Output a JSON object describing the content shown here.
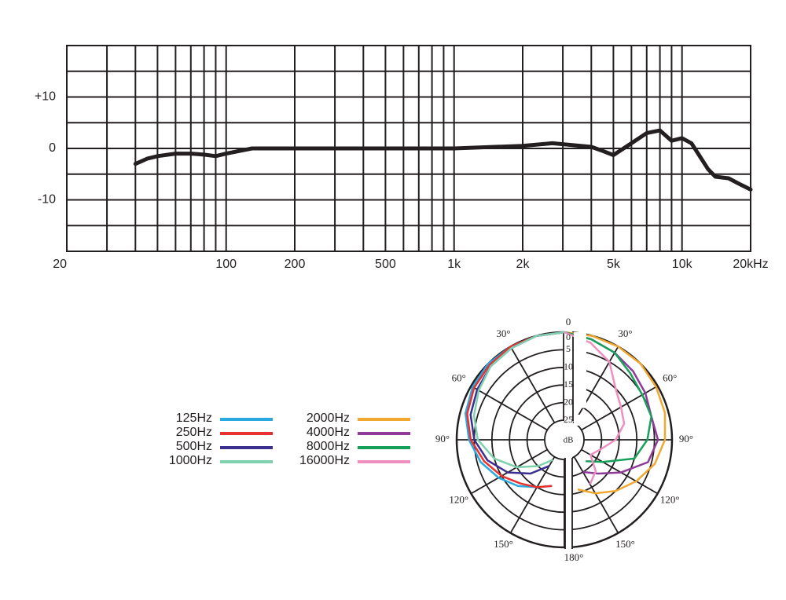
{
  "chart_data": [
    {
      "type": "line",
      "xscale": "log",
      "color": "#231f20",
      "grid": true,
      "x": [
        40,
        45,
        50,
        60,
        70,
        80,
        90,
        100,
        130,
        200,
        500,
        1000,
        2000,
        2700,
        4000,
        4500,
        5000,
        6000,
        7000,
        8000,
        9000,
        10000,
        11000,
        13000,
        14000,
        16000,
        18000,
        20000
      ],
      "values": [
        -3,
        -2,
        -1.5,
        -1,
        -1,
        -1.2,
        -1.5,
        -1,
        0,
        0,
        0,
        0,
        0.5,
        1,
        0.3,
        -0.5,
        -1.3,
        1,
        3,
        3.5,
        1.5,
        2,
        1,
        -4,
        -5.5,
        -5.8,
        -7,
        -8
      ],
      "xlim": [
        20,
        20000
      ],
      "xticks": [
        20,
        100,
        200,
        500,
        {
          "value": 1000,
          "label": "1k"
        },
        {
          "value": 2000,
          "label": "2k"
        },
        {
          "value": 5000,
          "label": "5k"
        },
        {
          "value": 10000,
          "label": "10k"
        },
        {
          "value": 20000,
          "label": "20kHz"
        }
      ],
      "xminor": [
        30,
        40,
        50,
        60,
        70,
        80,
        90,
        300,
        400,
        600,
        700,
        800,
        900,
        3000,
        4000,
        6000,
        7000,
        8000,
        9000
      ],
      "ylim": [
        -20,
        20
      ],
      "yticks": [
        {
          "value": 10,
          "label": "+10"
        },
        0,
        -10
      ],
      "yminor": [
        20,
        15,
        5,
        -5,
        -15,
        -20
      ]
    },
    {
      "type": "polar",
      "legend": "left",
      "r_unit": "dB",
      "rlim": [
        0,
        25
      ],
      "rticks": [
        0,
        5,
        10,
        15,
        20,
        25
      ],
      "angle_ticks": [
        {
          "value": 0,
          "label": "0"
        },
        {
          "value": 30,
          "label": "30°"
        },
        {
          "value": 60,
          "label": "60°"
        },
        {
          "value": 90,
          "label": "90°"
        },
        {
          "value": 120,
          "label": "120°"
        },
        {
          "value": 150,
          "label": "150°"
        },
        {
          "value": 180,
          "label": "180°"
        }
      ],
      "angles": [
        0,
        15,
        30,
        45,
        60,
        75,
        90,
        105,
        120,
        135,
        150,
        165
      ],
      "series": [
        {
          "name": "125Hz",
          "color": "#29a9e0",
          "side": "left",
          "values": [
            0,
            0,
            0,
            0,
            0.5,
            1.5,
            3.5,
            6,
            9,
            12,
            15,
            17
          ]
        },
        {
          "name": "250Hz",
          "color": "#e8312f",
          "side": "left",
          "values": [
            0,
            0,
            0,
            0.5,
            1,
            2,
            4,
            7,
            10,
            13,
            15,
            17
          ]
        },
        {
          "name": "500Hz",
          "color": "#3b2f8f",
          "side": "left",
          "values": [
            0,
            0,
            0.5,
            1,
            2,
            3,
            5,
            8,
            12,
            17,
            22,
            null
          ]
        },
        {
          "name": "1000Hz",
          "color": "#7fd1b0",
          "side": "left",
          "values": [
            0,
            0,
            0.5,
            1,
            2.5,
            4,
            6,
            10,
            15,
            20,
            24,
            null
          ]
        },
        {
          "name": "2000Hz",
          "color": "#f0a830",
          "side": "right",
          "values": [
            0,
            0,
            0,
            0,
            0.5,
            1,
            2,
            4,
            7,
            10,
            13,
            16
          ]
        },
        {
          "name": "4000Hz",
          "color": "#8e3a97",
          "side": "right",
          "values": [
            0,
            1,
            2,
            3,
            4,
            5,
            4,
            6,
            12,
            17,
            20,
            null
          ]
        },
        {
          "name": "8000Hz",
          "color": "#16a05a",
          "side": "right",
          "values": [
            0,
            1,
            2,
            4,
            5,
            5,
            7,
            10,
            18,
            22,
            null,
            null
          ]
        },
        {
          "name": "16000Hz",
          "color": "#ee8fc0",
          "side": "right",
          "values": [
            0,
            2,
            5,
            10,
            12,
            13,
            16,
            20,
            22,
            18,
            16,
            null
          ]
        }
      ]
    }
  ]
}
